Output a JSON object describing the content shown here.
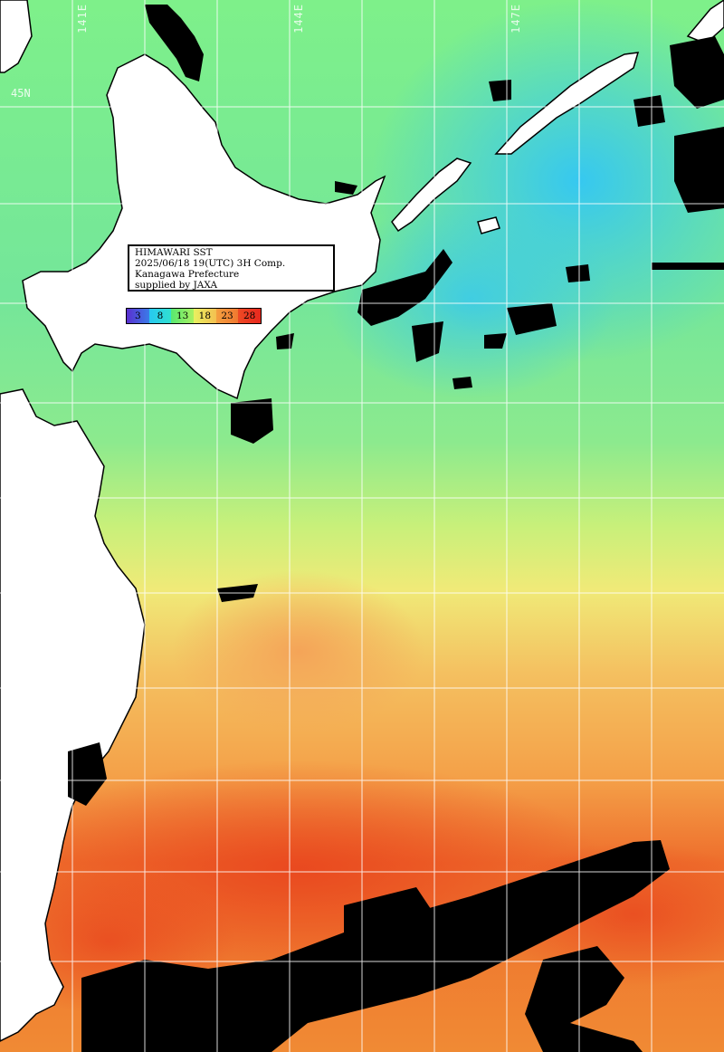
{
  "info": {
    "line1": "HIMAWARI SST",
    "line2": "2025/06/18 19(UTC) 3H Comp.",
    "line3": "Kanagawa Prefecture",
    "line4": "supplied by JAXA"
  },
  "colorbar": {
    "ticks": [
      "3",
      "8",
      "13",
      "18",
      "23",
      "28"
    ],
    "colors": [
      "#5a2fd0",
      "#27c8f0",
      "#58e870",
      "#e8f060",
      "#f09a3c",
      "#e8281e"
    ]
  },
  "grid": {
    "lon_labels": [
      "141E",
      "144E",
      "147E"
    ],
    "lat_labels": [
      "45N"
    ]
  },
  "colors": {
    "land": "#ffffff",
    "cloud": "#000000",
    "gridline": "#ffffff"
  }
}
